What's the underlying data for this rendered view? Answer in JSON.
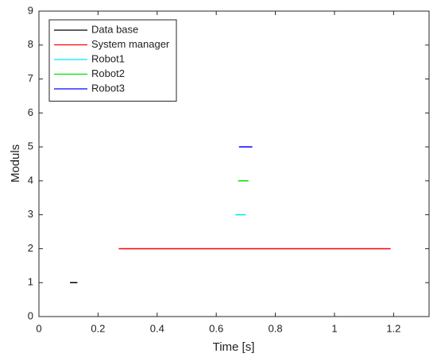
{
  "chart_data": {
    "type": "segments",
    "x_label": "Time [s]",
    "y_label": "Moduls",
    "xlim": [
      0,
      1.32
    ],
    "ylim": [
      0,
      9
    ],
    "xticks": [
      0,
      0.2,
      0.4,
      0.6,
      0.8,
      1,
      1.2
    ],
    "yticks": [
      0,
      1,
      2,
      3,
      4,
      5,
      6,
      7,
      8,
      9
    ],
    "grid": false,
    "legend": "upper left",
    "series": [
      {
        "name": "Data base",
        "color": "#000000",
        "x": [
          0.105,
          0.13
        ],
        "values": [
          1,
          1
        ]
      },
      {
        "name": "System manager",
        "color": "#ff0000",
        "x": [
          0.27,
          1.19
        ],
        "values": [
          2,
          2
        ]
      },
      {
        "name": "Robot1",
        "color": "#00e5ff",
        "x": [
          0.665,
          0.7
        ],
        "values": [
          3,
          3
        ]
      },
      {
        "name": "Robot2",
        "color": "#00e000",
        "x": [
          0.674,
          0.709
        ],
        "values": [
          4,
          4
        ]
      },
      {
        "name": "Robot3",
        "color": "#0000ff",
        "x": [
          0.677,
          0.722
        ],
        "values": [
          5,
          5
        ]
      }
    ]
  }
}
